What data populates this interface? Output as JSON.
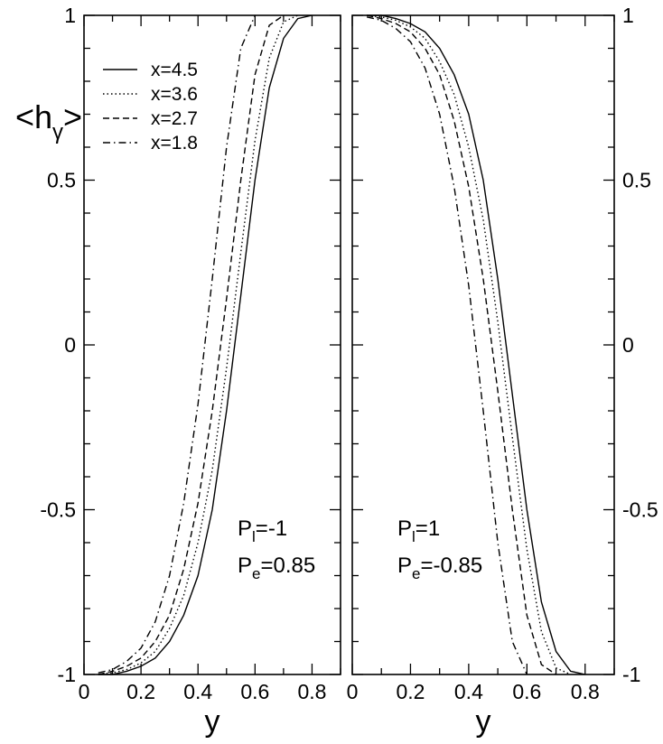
{
  "chart_data": [
    {
      "type": "line",
      "panel": "left",
      "xlabel": "y",
      "ylabel": "<h",
      "ylabel_subscript": "γ",
      "ylabel_close": ">",
      "xlim": [
        0,
        0.9
      ],
      "ylim": [
        -1,
        1
      ],
      "x_tick_labels": [
        "0",
        "0.2",
        "0.4",
        "0.6",
        "0.8"
      ],
      "y_tick_labels": [
        "-1",
        "-0.5",
        "0",
        "0.5",
        "1"
      ],
      "annotations": [
        {
          "main": "P",
          "sub": "l",
          "rest": "=-1"
        },
        {
          "main": "P",
          "sub": "e",
          "rest": "=0.85"
        }
      ],
      "legend": {
        "position": "top-left"
      },
      "series": [
        {
          "name": "x=4.5",
          "dash": "solid",
          "x": [
            0.05,
            0.1,
            0.15,
            0.2,
            0.25,
            0.3,
            0.35,
            0.4,
            0.45,
            0.5,
            0.55,
            0.6,
            0.65,
            0.7,
            0.75,
            0.8
          ],
          "y": [
            -1.0,
            -1.0,
            -0.99,
            -0.975,
            -0.95,
            -0.9,
            -0.82,
            -0.7,
            -0.5,
            -0.2,
            0.15,
            0.5,
            0.78,
            0.93,
            0.99,
            1.0
          ]
        },
        {
          "name": "x=3.6",
          "dash": "dotted",
          "x": [
            0.05,
            0.1,
            0.15,
            0.2,
            0.25,
            0.3,
            0.35,
            0.4,
            0.45,
            0.5,
            0.55,
            0.6,
            0.65,
            0.7,
            0.75
          ],
          "y": [
            -1.0,
            -0.995,
            -0.985,
            -0.965,
            -0.93,
            -0.86,
            -0.76,
            -0.6,
            -0.38,
            -0.07,
            0.28,
            0.62,
            0.87,
            0.98,
            1.0
          ]
        },
        {
          "name": "x=2.7",
          "dash": "dashed",
          "x": [
            0.05,
            0.1,
            0.15,
            0.2,
            0.25,
            0.3,
            0.35,
            0.4,
            0.45,
            0.5,
            0.55,
            0.6,
            0.65,
            0.7
          ],
          "y": [
            -1.0,
            -0.99,
            -0.975,
            -0.95,
            -0.9,
            -0.82,
            -0.68,
            -0.48,
            -0.2,
            0.14,
            0.5,
            0.82,
            0.97,
            1.0
          ]
        },
        {
          "name": "x=1.8",
          "dash": "dashdot",
          "x": [
            0.05,
            0.1,
            0.15,
            0.2,
            0.25,
            0.3,
            0.35,
            0.4,
            0.45,
            0.5,
            0.55,
            0.6
          ],
          "y": [
            -0.995,
            -0.985,
            -0.96,
            -0.92,
            -0.84,
            -0.7,
            -0.48,
            -0.18,
            0.2,
            0.6,
            0.9,
            1.0
          ]
        }
      ]
    },
    {
      "type": "line",
      "panel": "right",
      "xlabel": "y",
      "xlim": [
        0,
        0.9
      ],
      "ylim": [
        -1,
        1
      ],
      "x_tick_labels": [
        "0",
        "0.2",
        "0.4",
        "0.6",
        "0.8"
      ],
      "y_tick_labels": [
        "1",
        "0.5",
        "0",
        "-0.5",
        "-1"
      ],
      "annotations": [
        {
          "main": "P",
          "sub": "l",
          "rest": "=1"
        },
        {
          "main": "P",
          "sub": "e",
          "rest": "=-0.85"
        }
      ],
      "series": [
        {
          "name": "x=4.5",
          "dash": "solid",
          "x": [
            0.05,
            0.1,
            0.15,
            0.2,
            0.25,
            0.3,
            0.35,
            0.4,
            0.45,
            0.5,
            0.55,
            0.6,
            0.65,
            0.7,
            0.75,
            0.8
          ],
          "y": [
            1.0,
            1.0,
            0.99,
            0.975,
            0.95,
            0.9,
            0.82,
            0.7,
            0.5,
            0.2,
            -0.15,
            -0.5,
            -0.78,
            -0.93,
            -0.99,
            -1.0
          ]
        },
        {
          "name": "x=3.6",
          "dash": "dotted",
          "x": [
            0.05,
            0.1,
            0.15,
            0.2,
            0.25,
            0.3,
            0.35,
            0.4,
            0.45,
            0.5,
            0.55,
            0.6,
            0.65,
            0.7,
            0.75
          ],
          "y": [
            1.0,
            0.995,
            0.985,
            0.965,
            0.93,
            0.86,
            0.76,
            0.6,
            0.38,
            0.07,
            -0.28,
            -0.62,
            -0.87,
            -0.98,
            -1.0
          ]
        },
        {
          "name": "x=2.7",
          "dash": "dashed",
          "x": [
            0.05,
            0.1,
            0.15,
            0.2,
            0.25,
            0.3,
            0.35,
            0.4,
            0.45,
            0.5,
            0.55,
            0.6,
            0.65,
            0.7
          ],
          "y": [
            1.0,
            0.99,
            0.975,
            0.95,
            0.9,
            0.82,
            0.68,
            0.48,
            0.2,
            -0.14,
            -0.5,
            -0.82,
            -0.97,
            -1.0
          ]
        },
        {
          "name": "x=1.8",
          "dash": "dashdot",
          "x": [
            0.05,
            0.1,
            0.15,
            0.2,
            0.25,
            0.3,
            0.35,
            0.4,
            0.45,
            0.5,
            0.55,
            0.6
          ],
          "y": [
            0.995,
            0.985,
            0.96,
            0.92,
            0.84,
            0.7,
            0.48,
            0.18,
            -0.2,
            -0.6,
            -0.9,
            -1.0
          ]
        }
      ]
    }
  ]
}
